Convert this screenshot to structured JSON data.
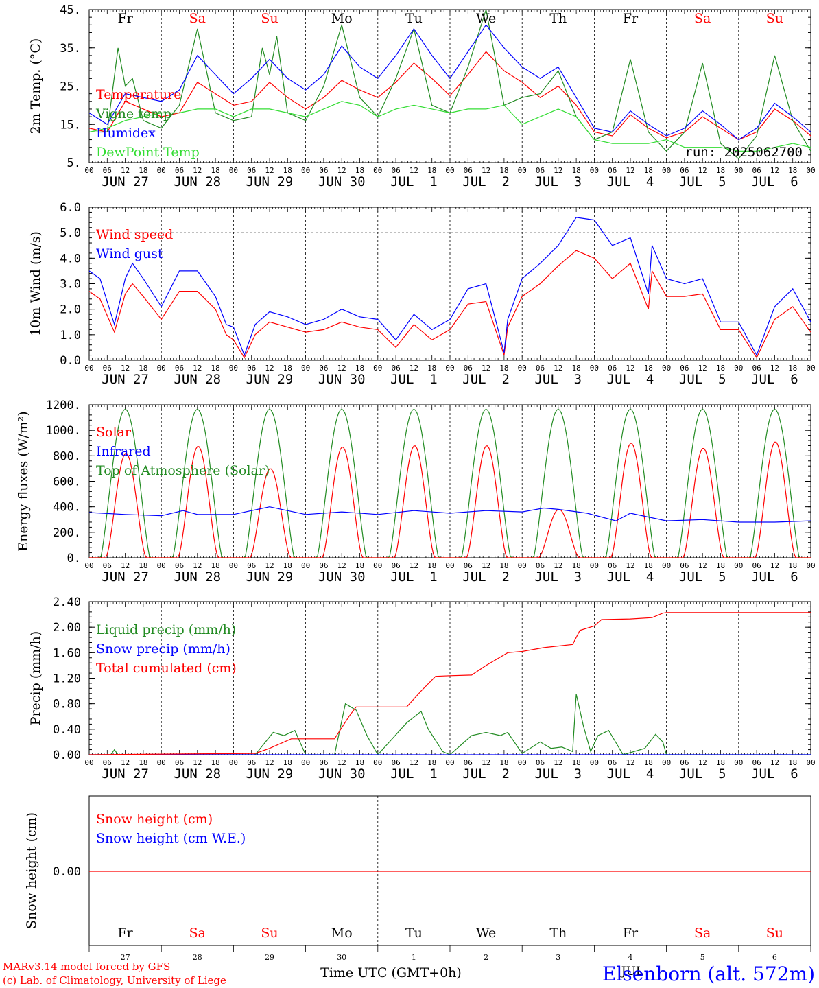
{
  "days": [
    "Fr",
    "Sa",
    "Su",
    "Mo",
    "Tu",
    "We",
    "Th",
    "Fr",
    "Sa",
    "Su"
  ],
  "day_colors": [
    "#000000",
    "#ff0000",
    "#ff0000",
    "#000000",
    "#000000",
    "#000000",
    "#000000",
    "#000000",
    "#ff0000",
    "#ff0000"
  ],
  "hour_labels": [
    "00",
    "06",
    "12",
    "18"
  ],
  "date_labels": [
    "JUN 27",
    "JUN 28",
    "JUN 29",
    "JUN 30",
    "JUL  1",
    "JUL  2",
    "JUL  3",
    "JUL  4",
    "JUL  5",
    "JUL  6"
  ],
  "bottom_dates": [
    "27",
    "28",
    "29",
    "30",
    "1",
    "2",
    "3",
    "4",
    "5",
    "6"
  ],
  "bottom_month": "JUL",
  "xlabel": "Time UTC (GMT+0h)",
  "credit_line1": "MARv3.14 model forced by GFS",
  "credit_line2": "(c) Lab. of Climatology, University of Liege",
  "station": "Elsenborn (alt. 572m)",
  "run_label": "run: 2025062700",
  "colors": {
    "red": "#ff0000",
    "green": "#228b22",
    "blue": "#0000ff",
    "lightgreen": "#33dd33"
  },
  "chart_data": [
    {
      "type": "line",
      "ylabel": "2m Temp. (°C)",
      "ylim": [
        5,
        45
      ],
      "yticks": [
        "5.",
        "15.",
        "25.",
        "35.",
        "45."
      ],
      "x_unit": "days from JUN 27 00 UTC",
      "series": [
        {
          "name": "Temperature",
          "color": "red",
          "x": [
            0,
            0.25,
            0.5,
            0.75,
            1,
            1.25,
            1.5,
            1.75,
            2,
            2.25,
            2.5,
            2.75,
            3,
            3.25,
            3.5,
            3.75,
            4,
            4.25,
            4.5,
            4.75,
            5,
            5.25,
            5.5,
            5.75,
            6,
            6.25,
            6.5,
            6.75,
            7,
            7.25,
            7.5,
            7.75,
            8,
            8.25,
            8.5,
            8.75,
            9,
            9.25,
            9.5,
            9.75,
            10
          ],
          "y": [
            14,
            13,
            21,
            19,
            17,
            18,
            26,
            23,
            20,
            21,
            26,
            22,
            19,
            22,
            26.5,
            24,
            22,
            26,
            31,
            27,
            22.5,
            28,
            34,
            29,
            26,
            22,
            25,
            20,
            13,
            12,
            17.5,
            14,
            11.5,
            13,
            17,
            14,
            11,
            13,
            19,
            16,
            12
          ]
        },
        {
          "name": "Vigne temp",
          "color": "green",
          "x": [
            0,
            0.25,
            0.4,
            0.5,
            0.6,
            0.75,
            1,
            1.25,
            1.5,
            1.75,
            2,
            2.25,
            2.4,
            2.5,
            2.6,
            2.75,
            3,
            3.25,
            3.5,
            3.75,
            4,
            4.25,
            4.5,
            4.75,
            5,
            5.25,
            5.5,
            5.75,
            6,
            6.25,
            6.5,
            6.75,
            7,
            7.25,
            7.5,
            7.75,
            8,
            8.25,
            8.5,
            8.75,
            9,
            9.25,
            9.5,
            9.75,
            10
          ],
          "y": [
            13,
            13,
            35,
            25,
            27,
            16,
            14,
            20,
            40,
            18,
            16,
            17,
            35,
            28,
            38,
            18,
            16,
            25,
            41,
            22,
            17,
            27,
            40,
            20,
            18,
            30,
            45,
            20,
            22,
            23,
            29,
            17,
            11,
            13,
            32,
            13,
            8,
            13,
            31,
            10,
            6,
            12,
            33,
            16,
            8
          ]
        },
        {
          "name": "Humidex",
          "color": "blue",
          "x": [
            0,
            0.25,
            0.5,
            0.75,
            1,
            1.25,
            1.5,
            1.75,
            2,
            2.25,
            2.5,
            2.75,
            3,
            3.25,
            3.5,
            3.75,
            4,
            4.25,
            4.5,
            4.75,
            5,
            5.25,
            5.5,
            5.75,
            6,
            6.25,
            6.5,
            6.75,
            7,
            7.25,
            7.5,
            7.75,
            8,
            8.25,
            8.5,
            8.75,
            9,
            9.25,
            9.5,
            9.75,
            10
          ],
          "y": [
            18,
            15,
            23,
            22,
            21,
            24,
            33,
            28,
            23,
            27,
            32,
            27,
            24,
            28,
            35.5,
            30,
            27,
            33,
            40,
            33,
            27,
            34,
            41,
            35,
            30,
            27,
            30,
            22,
            14,
            13,
            18.5,
            15,
            12,
            14,
            18.5,
            15,
            11,
            14,
            20.5,
            17,
            13
          ]
        },
        {
          "name": "DewPoint Temp",
          "color": "lightgreen",
          "x": [
            0,
            0.25,
            0.5,
            0.75,
            1,
            1.25,
            1.5,
            1.75,
            2,
            2.25,
            2.5,
            2.75,
            3,
            3.25,
            3.5,
            3.75,
            4,
            4.25,
            4.5,
            4.75,
            5,
            5.25,
            5.5,
            5.75,
            6,
            6.25,
            6.5,
            6.75,
            7,
            7.25,
            7.5,
            7.75,
            8,
            8.25,
            8.5,
            8.75,
            9,
            9.25,
            9.5,
            9.75,
            10
          ],
          "y": [
            13,
            14,
            16,
            17,
            18,
            18,
            19,
            19,
            17,
            19,
            19,
            18,
            17,
            19,
            21,
            20,
            17,
            19,
            20,
            19,
            18,
            19,
            19,
            20,
            15,
            17,
            19,
            17,
            11,
            10,
            10,
            10,
            11,
            9,
            9,
            9,
            8,
            8,
            9,
            10,
            9
          ]
        }
      ]
    },
    {
      "type": "line",
      "ylabel": "10m Wind (m/s)",
      "ylim": [
        0,
        6
      ],
      "yticks": [
        "0.0",
        "1.0",
        "2.0",
        "3.0",
        "4.0",
        "5.0",
        "6.0"
      ],
      "dashed_at": 5,
      "series": [
        {
          "name": "Wind speed",
          "color": "red",
          "x": [
            0,
            0.15,
            0.35,
            0.5,
            0.6,
            0.75,
            1,
            1.25,
            1.5,
            1.75,
            1.9,
            2,
            2.15,
            2.3,
            2.5,
            2.75,
            3,
            3.25,
            3.5,
            3.75,
            4,
            4.25,
            4.5,
            4.75,
            5,
            5.25,
            5.5,
            5.75,
            5.8,
            6,
            6.25,
            6.5,
            6.75,
            7,
            7.25,
            7.5,
            7.75,
            7.8,
            8,
            8.25,
            8.5,
            8.75,
            9,
            9.25,
            9.5,
            9.75,
            10
          ],
          "y": [
            2.7,
            2.4,
            1.1,
            2.6,
            3,
            2.5,
            1.6,
            2.7,
            2.7,
            2,
            1,
            0.8,
            0.1,
            1,
            1.5,
            1.3,
            1.1,
            1.2,
            1.5,
            1.3,
            1.2,
            0.5,
            1.4,
            0.8,
            1.2,
            2.2,
            2.3,
            0.2,
            1.3,
            2.5,
            3,
            3.7,
            4.3,
            4,
            3.2,
            3.8,
            2.0,
            3.5,
            2.5,
            2.5,
            2.6,
            1.2,
            1.2,
            0.1,
            1.6,
            2.1,
            1.1
          ]
        },
        {
          "name": "Wind gust",
          "color": "blue",
          "x": [
            0,
            0.15,
            0.35,
            0.5,
            0.6,
            0.75,
            1,
            1.25,
            1.5,
            1.75,
            1.9,
            2,
            2.15,
            2.3,
            2.5,
            2.75,
            3,
            3.25,
            3.5,
            3.75,
            4,
            4.25,
            4.5,
            4.75,
            5,
            5.25,
            5.5,
            5.75,
            5.8,
            6,
            6.25,
            6.5,
            6.75,
            7,
            7.25,
            7.5,
            7.75,
            7.8,
            8,
            8.25,
            8.5,
            8.75,
            9,
            9.25,
            9.5,
            9.75,
            10
          ],
          "y": [
            3.5,
            3.2,
            1.4,
            3.2,
            3.8,
            3.2,
            2.1,
            3.5,
            3.5,
            2.5,
            1.4,
            1.3,
            0.2,
            1.4,
            1.9,
            1.7,
            1.4,
            1.6,
            2,
            1.7,
            1.6,
            0.8,
            1.8,
            1.2,
            1.6,
            2.8,
            3,
            0.3,
            1.6,
            3.2,
            3.8,
            4.5,
            5.6,
            5.5,
            4.5,
            4.8,
            2.6,
            4.5,
            3.2,
            3,
            3.2,
            1.5,
            1.5,
            0.2,
            2.1,
            2.8,
            1.5
          ]
        }
      ]
    },
    {
      "type": "line",
      "ylabel": "Energy fluxes (W/m²)",
      "ylim": [
        0,
        1200
      ],
      "yticks": [
        "0.",
        "200.",
        "400.",
        "600.",
        "800.",
        "1000.",
        "1200."
      ],
      "series": [
        {
          "name": "Solar",
          "color": "red",
          "daily_peaks": [
            820,
            875,
            700,
            870,
            880,
            880,
            380,
            900,
            860,
            910
          ]
        },
        {
          "name": "Infrared",
          "color": "blue",
          "x": [
            0,
            0.5,
            1,
            1.3,
            1.5,
            2,
            2.5,
            3,
            3.5,
            4,
            4.5,
            5,
            5.5,
            6,
            6.3,
            6.5,
            6.9,
            7.3,
            7.5,
            8,
            8.5,
            9,
            9.5,
            10
          ],
          "y": [
            355,
            340,
            330,
            370,
            340,
            340,
            400,
            340,
            360,
            340,
            370,
            350,
            370,
            360,
            390,
            380,
            350,
            290,
            350,
            290,
            300,
            280,
            280,
            290
          ]
        },
        {
          "name": "Top of Atmosphere (Solar)",
          "color": "green",
          "daily_peak": 1165
        }
      ]
    },
    {
      "type": "line",
      "ylabel": "Precip (mm/h)",
      "ylim": [
        0,
        2.4
      ],
      "yticks": [
        "0.00",
        "0.40",
        "0.80",
        "1.20",
        "1.60",
        "2.00",
        "2.40"
      ],
      "series": [
        {
          "name": "Liquid precip (mm/h)",
          "color": "green",
          "x": [
            0,
            0.3,
            0.35,
            0.4,
            2.3,
            2.55,
            2.7,
            2.85,
            3,
            3.4,
            3.55,
            3.7,
            3.85,
            4,
            4.4,
            4.6,
            4.7,
            4.9,
            5,
            5.3,
            5.5,
            5.7,
            5.8,
            6,
            6.25,
            6.4,
            6.55,
            6.7,
            6.75,
            6.85,
            6.95,
            7.05,
            7.2,
            7.4,
            7.7,
            7.85,
            7.95,
            8,
            10
          ],
          "y": [
            0,
            0,
            0.08,
            0,
            0,
            0.35,
            0.3,
            0.38,
            0,
            0,
            0.8,
            0.7,
            0.3,
            0,
            0.5,
            0.68,
            0.4,
            0.05,
            0,
            0.3,
            0.35,
            0.3,
            0.35,
            0.02,
            0.2,
            0.1,
            0.12,
            0.05,
            0.95,
            0.45,
            0.05,
            0.3,
            0.38,
            0,
            0.1,
            0.32,
            0.2,
            0,
            0
          ]
        },
        {
          "name": "Snow precip (mm/h)",
          "color": "blue",
          "x": [
            0,
            10
          ],
          "y": [
            0,
            0
          ]
        },
        {
          "name": "Total cumulated (cm)",
          "color": "red",
          "x": [
            0,
            2.3,
            2.5,
            2.8,
            3,
            3.4,
            3.6,
            3.7,
            4,
            4.4,
            4.6,
            4.8,
            5,
            5.3,
            5.5,
            5.8,
            6,
            6.3,
            6.7,
            6.8,
            7,
            7.1,
            7.5,
            7.8,
            7.95,
            8,
            10
          ],
          "y": [
            0,
            0.02,
            0.1,
            0.25,
            0.25,
            0.25,
            0.6,
            0.75,
            0.75,
            0.75,
            1.0,
            1.23,
            1.24,
            1.25,
            1.4,
            1.6,
            1.62,
            1.68,
            1.73,
            1.95,
            2.02,
            2.12,
            2.13,
            2.15,
            2.22,
            2.23,
            2.23
          ]
        }
      ]
    },
    {
      "type": "line",
      "ylabel": "Snow height (cm)",
      "yticks": [
        "0.00"
      ],
      "series": [
        {
          "name": "Snow height (cm)",
          "color": "red",
          "x": [
            0,
            10
          ],
          "y": [
            0,
            0
          ]
        },
        {
          "name": "Snow height (cm W.E.)",
          "color": "blue",
          "x": [
            0,
            10
          ],
          "y": [
            0,
            0
          ]
        }
      ]
    }
  ]
}
